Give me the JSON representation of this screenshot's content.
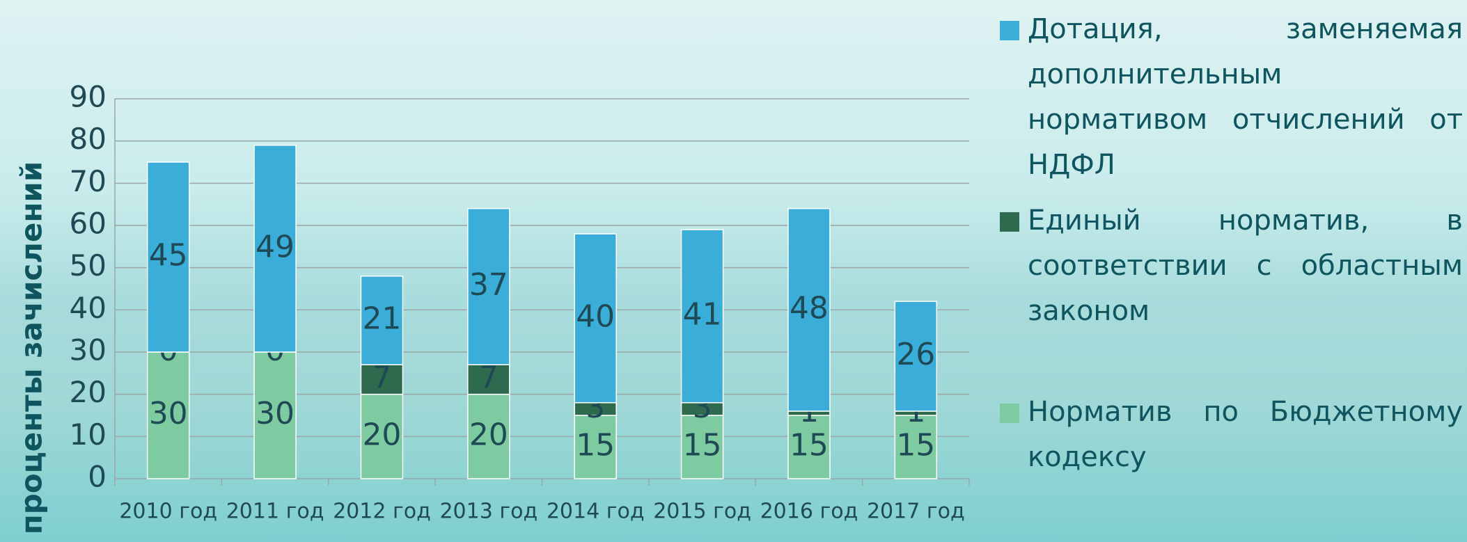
{
  "chart_data": {
    "type": "stacked_bar",
    "categories": [
      "2010 год",
      "2011 год",
      "2012 год",
      "2013 год",
      "2014 год",
      "2015 год",
      "2016 год",
      "2017 год"
    ],
    "series": [
      {
        "name": "Норматив по Бюджетному кодексу",
        "color": "#7ecba1",
        "values": [
          30,
          30,
          20,
          20,
          15,
          15,
          15,
          15
        ]
      },
      {
        "name": "Единый норматив, в соответствии с областным законом",
        "color": "#2e6b4e",
        "values": [
          0,
          0,
          7,
          7,
          3,
          3,
          1,
          1
        ]
      },
      {
        "name": "Дотация, заменяемая дополнительным нормативом отчислений от НДФЛ",
        "color": "#3aaed8",
        "values": [
          45,
          49,
          21,
          37,
          40,
          41,
          48,
          26
        ]
      }
    ],
    "y_label": "проценты зачислений",
    "ylim": [
      0,
      90
    ],
    "yticks": [
      0,
      10,
      20,
      30,
      40,
      50,
      60,
      70,
      80,
      90
    ],
    "grid": true,
    "legend": "right"
  }
}
